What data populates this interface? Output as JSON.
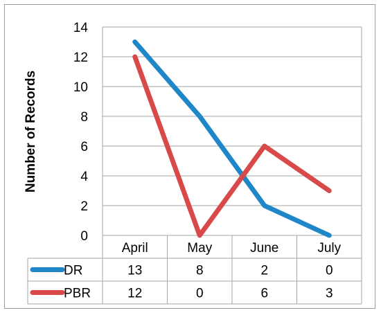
{
  "chart_data": {
    "type": "line",
    "ylabel": "Number of Records",
    "categories": [
      "April",
      "May",
      "June",
      "July"
    ],
    "ylim": [
      0,
      14
    ],
    "yticks": [
      0,
      2,
      4,
      6,
      8,
      10,
      12,
      14
    ],
    "grid": true,
    "legend": "data-table",
    "series": [
      {
        "name": "DR",
        "color": "#1f86c8",
        "values": [
          13,
          8,
          2,
          0
        ]
      },
      {
        "name": "PBR",
        "color": "#d84a4a",
        "values": [
          12,
          0,
          6,
          3
        ]
      }
    ]
  }
}
